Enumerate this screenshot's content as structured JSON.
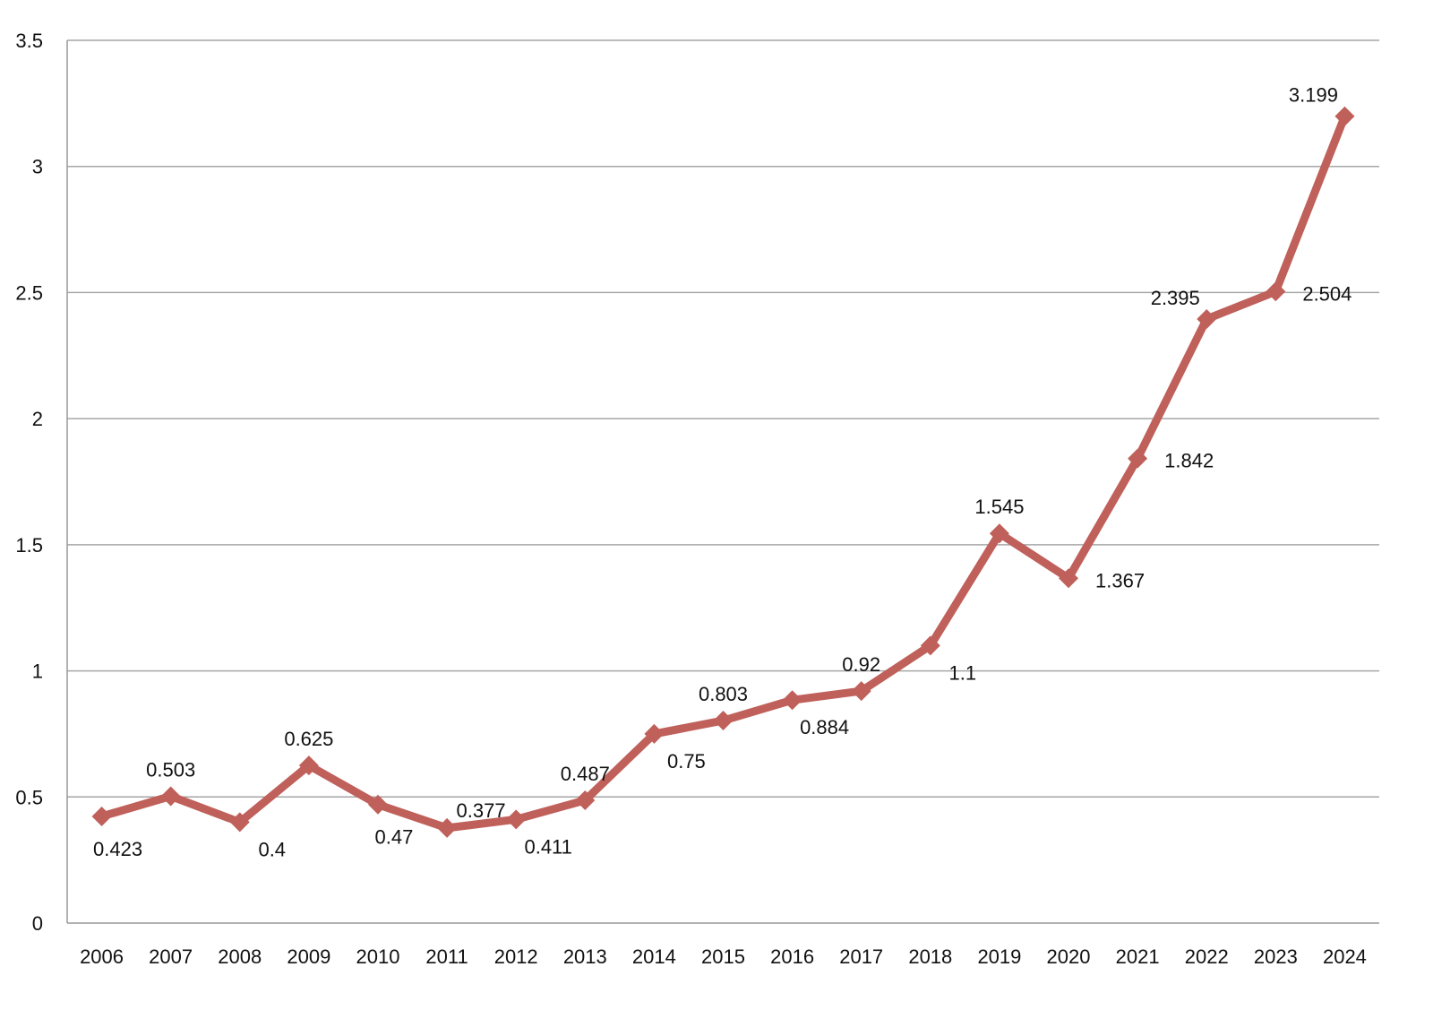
{
  "chart_data": {
    "type": "line",
    "title": "",
    "xlabel": "",
    "ylabel": "",
    "categories": [
      "2006",
      "2007",
      "2008",
      "2009",
      "2010",
      "2011",
      "2012",
      "2013",
      "2014",
      "2015",
      "2016",
      "2017",
      "2018",
      "2019",
      "2020",
      "2021",
      "2022",
      "2023",
      "2024"
    ],
    "series": [
      {
        "name": "Series 1",
        "color": "#c0605a",
        "values": [
          0.423,
          0.503,
          0.4,
          0.625,
          0.47,
          0.377,
          0.411,
          0.487,
          0.75,
          0.803,
          0.884,
          0.92,
          1.1,
          1.545,
          1.367,
          1.842,
          2.395,
          2.504,
          3.199
        ],
        "labels": [
          "0.423",
          "0.503",
          "0.4",
          "0.625",
          "0.47",
          "0.377",
          "0.411",
          "0.487",
          "0.75",
          "0.803",
          "0.884",
          "0.92",
          "1.1",
          "1.545",
          "1.367",
          "1.842",
          "2.395",
          "2.504",
          "3.199"
        ],
        "label_positions": [
          "below",
          "above",
          "below-right",
          "above",
          "below",
          "above-right",
          "below-right",
          "above",
          "below-right",
          "above",
          "below-right",
          "above",
          "below-right",
          "above",
          "right",
          "right",
          "above-left",
          "right",
          "above-left"
        ]
      }
    ],
    "ylim": [
      0,
      3.5
    ],
    "yticks": [
      "0",
      "0.5",
      "1",
      "1.5",
      "2",
      "2.5",
      "3",
      "3.5"
    ],
    "ytick_values": [
      0,
      0.5,
      1,
      1.5,
      2,
      2.5,
      3,
      3.5
    ],
    "grid": true,
    "legend": "none",
    "marker": "diamond"
  }
}
